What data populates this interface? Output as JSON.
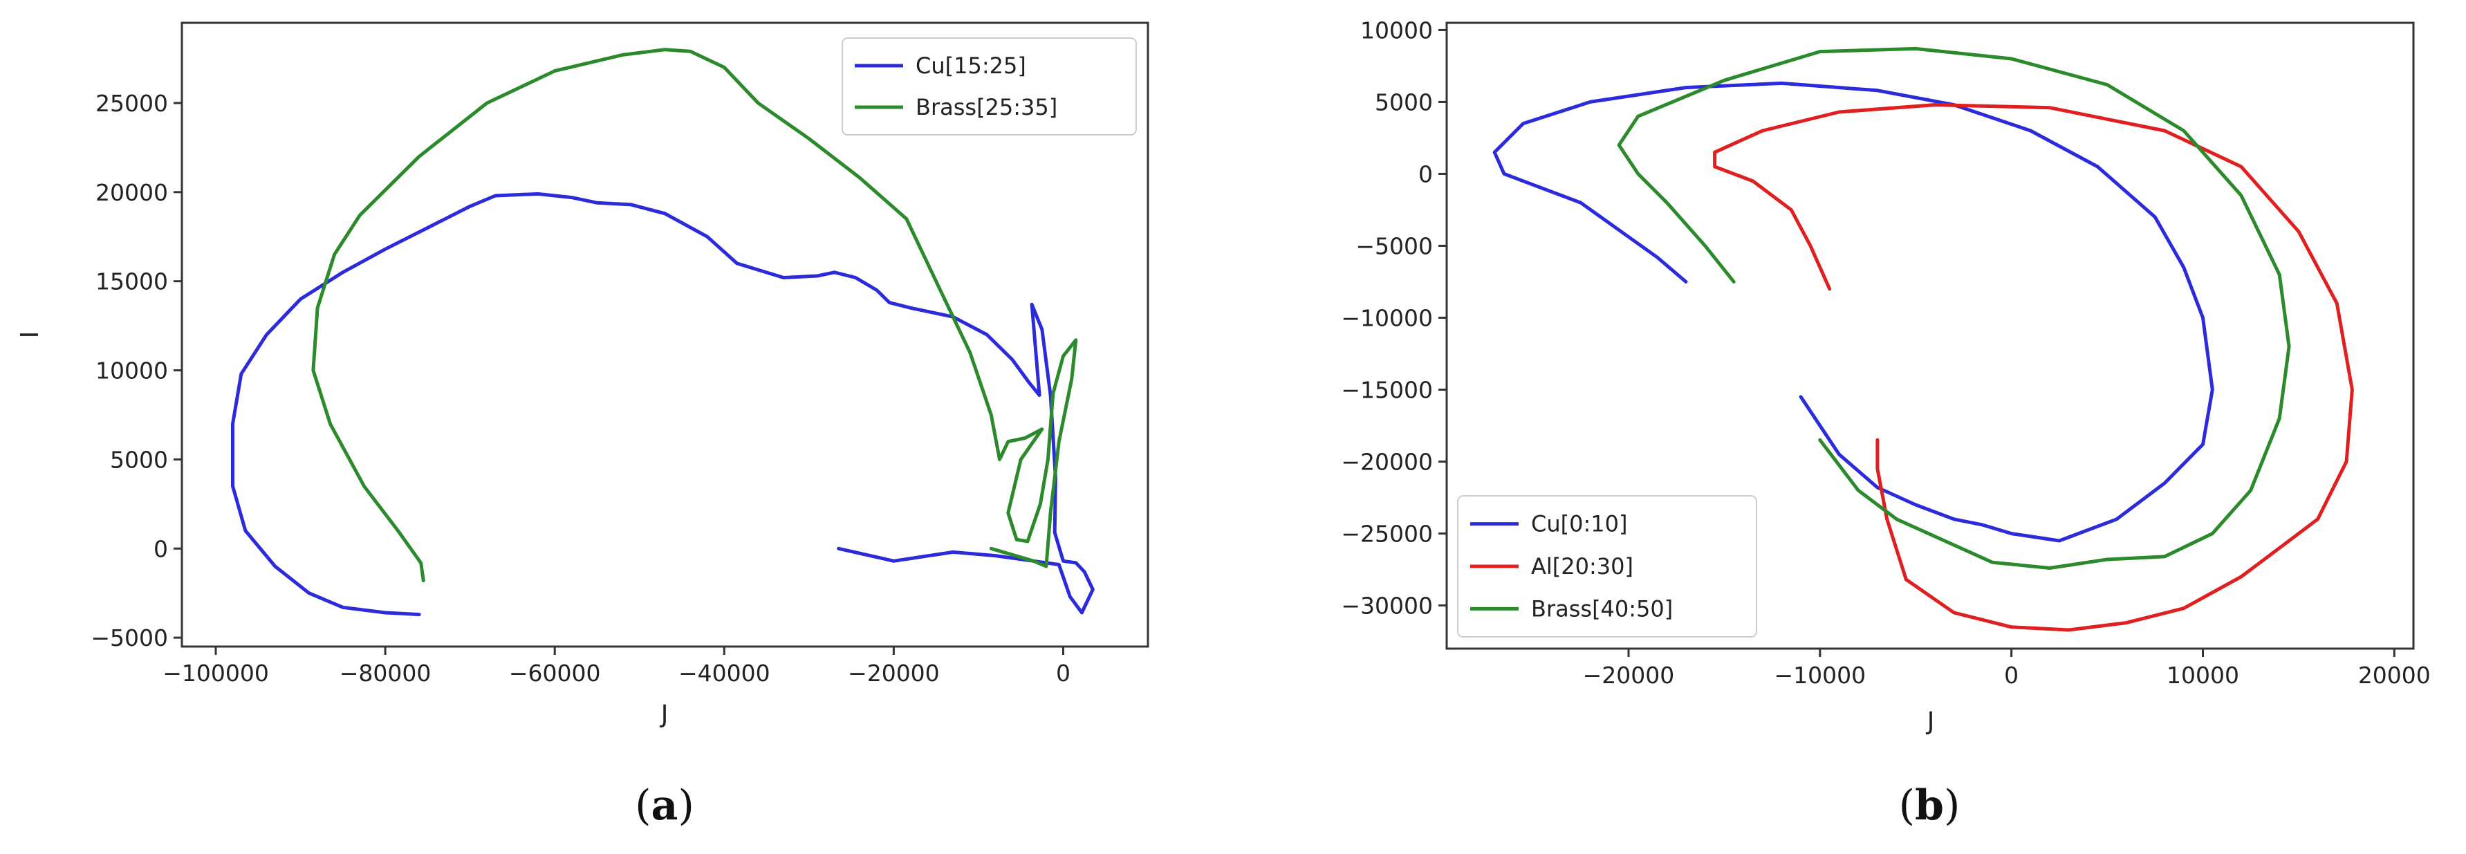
{
  "chart_data": [
    {
      "type": "line",
      "panel_label": "(a)",
      "panel_letter": "a",
      "xlabel": "J",
      "ylabel": "I",
      "xlim": [
        -104000,
        10000
      ],
      "ylim": [
        -5500,
        29500
      ],
      "xticks": [
        -100000,
        -80000,
        -60000,
        -40000,
        -20000,
        0
      ],
      "xtick_labels": [
        "−100000",
        "−80000",
        "−60000",
        "−40000",
        "−20000",
        "0"
      ],
      "yticks": [
        -5000,
        0,
        5000,
        10000,
        15000,
        20000,
        25000
      ],
      "ytick_labels": [
        "−5000",
        "0",
        "5000",
        "10000",
        "15000",
        "20000",
        "25000"
      ],
      "legend_position": "top-right",
      "grid": false,
      "series": [
        {
          "name": "Cu[15:25]",
          "color": "#2b2bdb",
          "points": [
            [
              -76000,
              -3700
            ],
            [
              -80000,
              -3600
            ],
            [
              -85000,
              -3300
            ],
            [
              -89000,
              -2500
            ],
            [
              -93000,
              -1000
            ],
            [
              -96500,
              1000
            ],
            [
              -98000,
              3500
            ],
            [
              -98000,
              7000
            ],
            [
              -97000,
              9800
            ],
            [
              -94000,
              12000
            ],
            [
              -90000,
              14000
            ],
            [
              -85000,
              15500
            ],
            [
              -80000,
              16800
            ],
            [
              -75000,
              18000
            ],
            [
              -70000,
              19200
            ],
            [
              -67000,
              19800
            ],
            [
              -62000,
              19900
            ],
            [
              -58000,
              19700
            ],
            [
              -55000,
              19400
            ],
            [
              -51000,
              19300
            ],
            [
              -47000,
              18800
            ],
            [
              -42000,
              17500
            ],
            [
              -38500,
              16000
            ],
            [
              -33000,
              15200
            ],
            [
              -29000,
              15300
            ],
            [
              -27000,
              15500
            ],
            [
              -24500,
              15200
            ],
            [
              -22000,
              14500
            ],
            [
              -20500,
              13800
            ],
            [
              -18000,
              13500
            ],
            [
              -13000,
              13000
            ],
            [
              -9000,
              12000
            ],
            [
              -6000,
              10600
            ],
            [
              -4000,
              9300
            ],
            [
              -2800,
              8600
            ],
            [
              -3700,
              13700
            ],
            [
              -2500,
              12300
            ],
            [
              -1500,
              8600
            ],
            [
              -900,
              4000
            ],
            [
              -1000,
              900
            ],
            [
              0,
              -700
            ],
            [
              1500,
              -800
            ],
            [
              2500,
              -1300
            ],
            [
              3500,
              -2300
            ],
            [
              2200,
              -3600
            ],
            [
              800,
              -2700
            ],
            [
              -500,
              -900
            ],
            [
              -3500,
              -700
            ],
            [
              -8000,
              -400
            ],
            [
              -13000,
              -200
            ],
            [
              -20000,
              -700
            ],
            [
              -26500,
              0
            ]
          ]
        },
        {
          "name": "Brass[25:35]",
          "color": "#2b8a2b",
          "points": [
            [
              -75500,
              -1800
            ],
            [
              -75800,
              -800
            ],
            [
              -78500,
              1000
            ],
            [
              -82500,
              3500
            ],
            [
              -86500,
              7000
            ],
            [
              -88500,
              10000
            ],
            [
              -88000,
              13500
            ],
            [
              -86000,
              16500
            ],
            [
              -83000,
              18700
            ],
            [
              -76000,
              22000
            ],
            [
              -68000,
              25000
            ],
            [
              -60000,
              26800
            ],
            [
              -52000,
              27700
            ],
            [
              -47000,
              28000
            ],
            [
              -44000,
              27900
            ],
            [
              -40000,
              27000
            ],
            [
              -36000,
              25000
            ],
            [
              -30000,
              23000
            ],
            [
              -24000,
              20800
            ],
            [
              -18500,
              18500
            ],
            [
              -15000,
              15000
            ],
            [
              -11000,
              11000
            ],
            [
              -8500,
              7500
            ],
            [
              -7500,
              5000
            ],
            [
              -6500,
              6000
            ],
            [
              -4500,
              6200
            ],
            [
              -2500,
              6700
            ],
            [
              -5000,
              5000
            ],
            [
              -6500,
              2000
            ],
            [
              -5500,
              500
            ],
            [
              -4200,
              400
            ],
            [
              -2700,
              2500
            ],
            [
              -1800,
              5000
            ],
            [
              -1200,
              8700
            ],
            [
              0,
              10800
            ],
            [
              1500,
              11700
            ],
            [
              1000,
              9500
            ],
            [
              -500,
              6000
            ],
            [
              -1500,
              2000
            ],
            [
              -2000,
              -1000
            ],
            [
              -3500,
              -700
            ],
            [
              -8500,
              0
            ]
          ]
        }
      ]
    },
    {
      "type": "line",
      "panel_label": "(b)",
      "panel_letter": "b",
      "xlabel": "J",
      "ylabel": "",
      "xlim": [
        -29500,
        21000
      ],
      "ylim": [
        -33000,
        10500
      ],
      "xticks": [
        -20000,
        -10000,
        0,
        10000,
        20000
      ],
      "xtick_labels": [
        "−20000",
        "−10000",
        "0",
        "10000",
        "20000"
      ],
      "yticks": [
        -30000,
        -25000,
        -20000,
        -15000,
        -10000,
        -5000,
        0,
        5000,
        10000
      ],
      "ytick_labels": [
        "−30000",
        "−25000",
        "−20000",
        "−15000",
        "−10000",
        "−5000",
        "0",
        "5000",
        "10000"
      ],
      "legend_position": "lower-left",
      "grid": false,
      "series": [
        {
          "name": "Cu[0:10]",
          "color": "#2b2bdb",
          "points": [
            [
              -17000,
              -7500
            ],
            [
              -18500,
              -5800
            ],
            [
              -20500,
              -3900
            ],
            [
              -22500,
              -2000
            ],
            [
              -24500,
              -1000
            ],
            [
              -26500,
              0
            ],
            [
              -27000,
              1500
            ],
            [
              -25500,
              3500
            ],
            [
              -22000,
              5000
            ],
            [
              -17000,
              6000
            ],
            [
              -12000,
              6300
            ],
            [
              -7000,
              5800
            ],
            [
              -3000,
              4800
            ],
            [
              1000,
              3000
            ],
            [
              4500,
              500
            ],
            [
              7500,
              -3000
            ],
            [
              9000,
              -6500
            ],
            [
              10000,
              -10000
            ],
            [
              10500,
              -15000
            ],
            [
              10000,
              -18800
            ],
            [
              8000,
              -21500
            ],
            [
              5500,
              -24000
            ],
            [
              3500,
              -25000
            ],
            [
              2500,
              -25500
            ],
            [
              0,
              -25000
            ],
            [
              -1500,
              -24400
            ],
            [
              -3000,
              -24000
            ],
            [
              -5000,
              -23000
            ],
            [
              -7000,
              -21800
            ],
            [
              -9000,
              -19500
            ],
            [
              -11000,
              -15500
            ]
          ]
        },
        {
          "name": "Al[20:30]",
          "color": "#e02020",
          "points": [
            [
              -9500,
              -8000
            ],
            [
              -10500,
              -5000
            ],
            [
              -11500,
              -2500
            ],
            [
              -13500,
              -500
            ],
            [
              -15500,
              500
            ],
            [
              -15500,
              1500
            ],
            [
              -13000,
              3000
            ],
            [
              -9000,
              4300
            ],
            [
              -4000,
              4800
            ],
            [
              2000,
              4600
            ],
            [
              8000,
              3000
            ],
            [
              12000,
              500
            ],
            [
              15000,
              -4000
            ],
            [
              17000,
              -9000
            ],
            [
              17800,
              -15000
            ],
            [
              17500,
              -20000
            ],
            [
              16000,
              -24000
            ],
            [
              12000,
              -28000
            ],
            [
              9000,
              -30200
            ],
            [
              6000,
              -31200
            ],
            [
              3000,
              -31700
            ],
            [
              0,
              -31500
            ],
            [
              -3000,
              -30500
            ],
            [
              -5500,
              -28200
            ],
            [
              -6500,
              -24000
            ],
            [
              -7000,
              -20500
            ],
            [
              -7000,
              -18500
            ]
          ]
        },
        {
          "name": "Brass[40:50]",
          "color": "#2b8a2b",
          "points": [
            [
              -14500,
              -7500
            ],
            [
              -16000,
              -5000
            ],
            [
              -18000,
              -2000
            ],
            [
              -19500,
              0
            ],
            [
              -20500,
              2000
            ],
            [
              -19500,
              4000
            ],
            [
              -15000,
              6500
            ],
            [
              -10000,
              8500
            ],
            [
              -5000,
              8700
            ],
            [
              0,
              8000
            ],
            [
              5000,
              6200
            ],
            [
              9000,
              3000
            ],
            [
              12000,
              -1500
            ],
            [
              14000,
              -7000
            ],
            [
              14500,
              -12000
            ],
            [
              14000,
              -17000
            ],
            [
              12500,
              -22000
            ],
            [
              10500,
              -25000
            ],
            [
              8000,
              -26600
            ],
            [
              5000,
              -26800
            ],
            [
              2000,
              -27400
            ],
            [
              -1000,
              -27000
            ],
            [
              -3500,
              -25500
            ],
            [
              -6000,
              -24000
            ],
            [
              -8000,
              -22000
            ],
            [
              -10000,
              -18500
            ]
          ]
        }
      ]
    }
  ]
}
